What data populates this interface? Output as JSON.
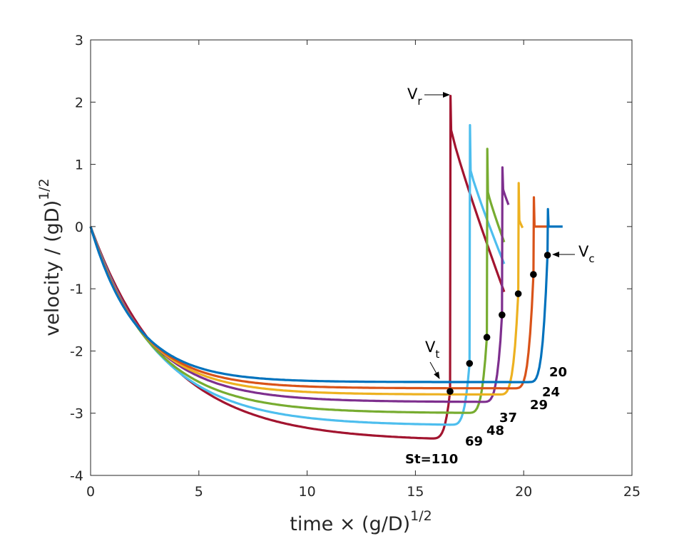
{
  "chart_data": {
    "type": "line",
    "title": "",
    "xlabel": {
      "base": "time × (g/D)",
      "sup": "1/2"
    },
    "ylabel": {
      "base": "velocity / (gD)",
      "sup": "1/2"
    },
    "xlim": [
      0,
      25
    ],
    "ylim": [
      -4,
      3
    ],
    "xticks": [
      0,
      5,
      10,
      15,
      20,
      25
    ],
    "yticks": [
      -4,
      -3,
      -2,
      -1,
      0,
      1,
      2,
      3
    ],
    "grid": false,
    "series": [
      {
        "name": "St=110",
        "label": "St=110",
        "color": "#A2142F",
        "t_impact": 16.6,
        "v_terminal": -3.45,
        "v_contact": -2.65,
        "v_rebound": 2.1,
        "v_after_spike": 1.55,
        "v_end": -1.05,
        "t_end": 19.1,
        "tau": 3.6
      },
      {
        "name": "69",
        "label": "69",
        "color": "#4DBEEE",
        "t_impact": 17.5,
        "v_terminal": -3.2,
        "v_contact": -2.2,
        "v_rebound": 1.63,
        "v_after_spike": 0.9,
        "v_end": -0.6,
        "t_end": 19.1,
        "tau": 3.1
      },
      {
        "name": "48",
        "label": "48",
        "color": "#77AC30",
        "t_impact": 18.3,
        "v_terminal": -3.0,
        "v_contact": -1.78,
        "v_rebound": 1.25,
        "v_after_spike": 0.55,
        "v_end": -0.25,
        "t_end": 19.1,
        "tau": 2.8
      },
      {
        "name": "37",
        "label": "37",
        "color": "#7E2F8E",
        "t_impact": 19.0,
        "v_terminal": -2.82,
        "v_contact": -1.42,
        "v_rebound": 0.95,
        "v_after_spike": 0.6,
        "v_end": 0.35,
        "t_end": 19.3,
        "tau": 2.6
      },
      {
        "name": "29",
        "label": "29",
        "color": "#EDB120",
        "t_impact": 19.75,
        "v_terminal": -2.7,
        "v_contact": -1.08,
        "v_rebound": 0.7,
        "v_after_spike": 0.1,
        "v_end": -0.02,
        "t_end": 19.95,
        "tau": 2.4
      },
      {
        "name": "24",
        "label": "24",
        "color": "#D95319",
        "t_impact": 20.45,
        "v_terminal": -2.6,
        "v_contact": -0.77,
        "v_rebound": 0.47,
        "v_after_spike": 0.0,
        "v_end": 0.0,
        "t_end": 21.1,
        "tau": 2.25
      },
      {
        "name": "20",
        "label": "20",
        "color": "#0072BD",
        "t_impact": 21.1,
        "v_terminal": -2.5,
        "v_contact": -0.46,
        "v_rebound": 0.28,
        "v_after_spike": 0.0,
        "v_end": 0.0,
        "t_end": 21.8,
        "tau": 2.1
      }
    ],
    "annotations": [
      {
        "id": "vr",
        "main": "V",
        "sub": "r"
      },
      {
        "id": "vt",
        "main": "V",
        "sub": "t"
      },
      {
        "id": "vc",
        "main": "V",
        "sub": "c"
      }
    ]
  }
}
